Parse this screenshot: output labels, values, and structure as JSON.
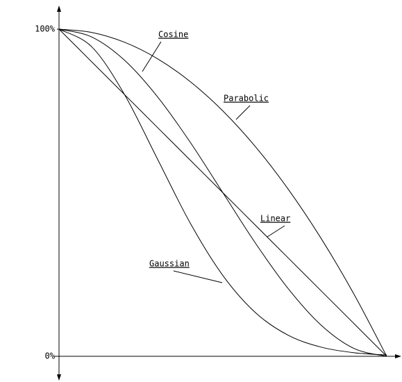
{
  "chart_data": {
    "type": "line",
    "x": [
      0,
      0.1,
      0.2,
      0.3,
      0.4,
      0.5,
      0.6,
      0.7,
      0.8,
      0.9,
      1
    ],
    "xlim": [
      0,
      1
    ],
    "ylim": [
      0,
      100
    ],
    "yticks": [
      {
        "value": 0,
        "label": "0%"
      },
      {
        "value": 100,
        "label": "100%"
      }
    ],
    "grid": false,
    "series": [
      {
        "name": "Cosine",
        "color": "#000000",
        "values": [
          100,
          97.6,
          90.5,
          79.4,
          65.5,
          50,
          34.5,
          20.6,
          9.5,
          2.4,
          0
        ]
      },
      {
        "name": "Parabolic",
        "color": "#000000",
        "values": [
          100,
          99,
          96,
          91,
          84,
          75,
          64,
          51,
          36,
          19,
          0
        ]
      },
      {
        "name": "Linear",
        "color": "#000000",
        "values": [
          100,
          90,
          80,
          70,
          60,
          50,
          40,
          30,
          20,
          10,
          0
        ]
      },
      {
        "name": "Gaussian",
        "color": "#000000",
        "values": [
          100,
          94.6,
          80,
          60.4,
          40.8,
          24.7,
          13.3,
          6.4,
          2.8,
          1.1,
          0.4
        ]
      }
    ]
  }
}
